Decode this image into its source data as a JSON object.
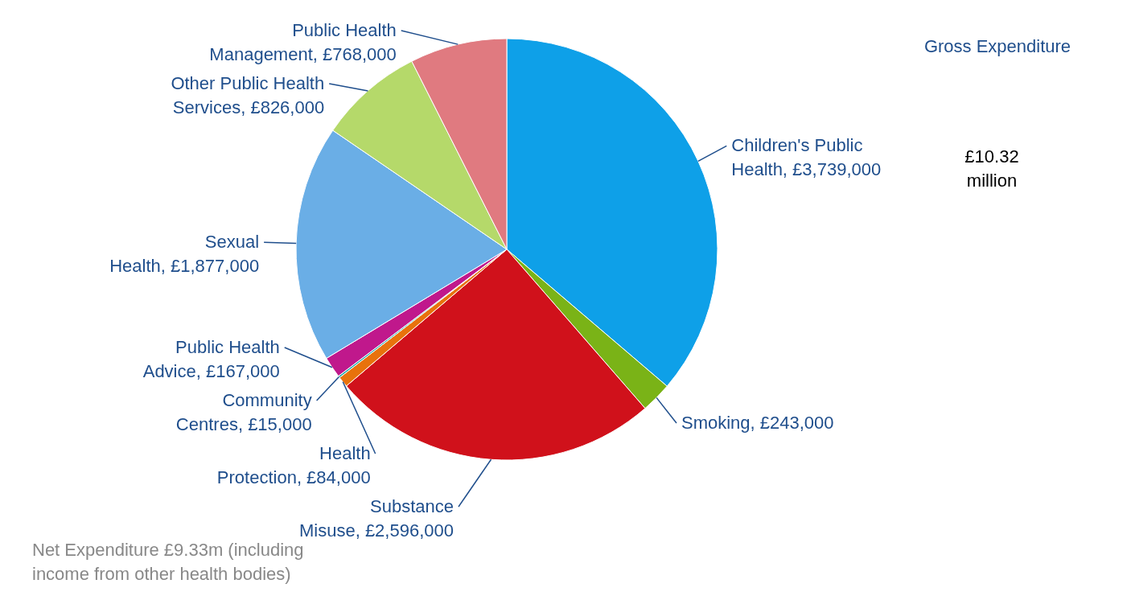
{
  "chart_data": {
    "type": "pie",
    "categories": [
      "Children's Public Health",
      "Smoking",
      "Substance Misuse",
      "Health Protection",
      "Community Centres",
      "Public Health Advice",
      "Sexual Health",
      "Other Public Health Services",
      "Public Health Management"
    ],
    "values": [
      3739000,
      243000,
      2596000,
      84000,
      15000,
      167000,
      1877000,
      826000,
      768000
    ],
    "value_labels": [
      "£3,739,000",
      "£243,000",
      "£2,596,000",
      "£84,000",
      "£15,000",
      "£167,000",
      "£1,877,000",
      "£826,000",
      "£768,000"
    ],
    "colors": [
      "#0ea0e8",
      "#7ab317",
      "#d0111b",
      "#e8720c",
      "#1aa8a8",
      "#c0188c",
      "#6aaee6",
      "#b5d96a",
      "#e07a80"
    ],
    "annotations": [
      "Gross Expenditure",
      "£10.32 million",
      "Net Expenditure £9.33m (including income from other health bodies)"
    ]
  }
}
